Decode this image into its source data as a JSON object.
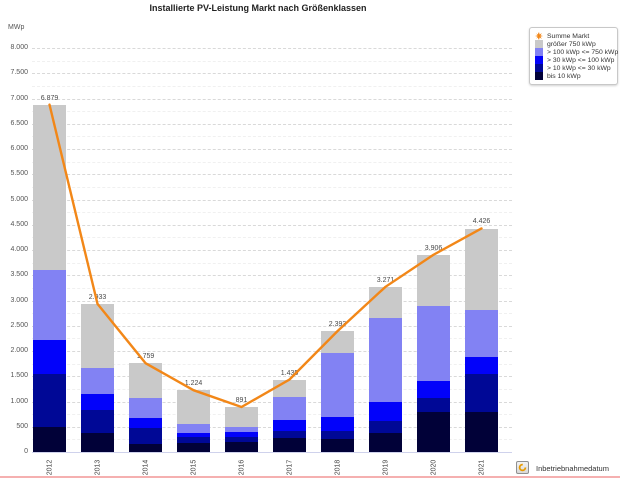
{
  "chart_data": {
    "type": "bar",
    "subtype": "stacked-bars-with-total-line",
    "title": "Installierte PV-Leistung Markt nach Größenklassen",
    "unit_label": "MWp",
    "xlabel": "Inbetriebnahmedatum",
    "ylabel": "MWp",
    "ylim": [
      0,
      8000
    ],
    "y_tick_step": 500,
    "y_minor_step": 250,
    "grid": "dashed",
    "legend_position": "top-right",
    "categories": [
      "2012",
      "2013",
      "2014",
      "2015",
      "2016",
      "2017",
      "2018",
      "2019",
      "2020",
      "2021"
    ],
    "stack_series": [
      {
        "name": "bis 10 kWp",
        "color": "#010138",
        "values": [
          500,
          380,
          160,
          170,
          205,
          280,
          250,
          380,
          790,
          785
        ]
      },
      {
        "name": "> 10 kWp <= 30 kWp",
        "color": "#000896",
        "values": [
          1050,
          460,
          320,
          125,
          95,
          140,
          175,
          235,
          280,
          750
        ]
      },
      {
        "name": "> 30 kWp <= 100 kWp",
        "color": "#0202fa",
        "values": [
          660,
          300,
          200,
          85,
          95,
          210,
          275,
          385,
          345,
          345
        ]
      },
      {
        "name": "> 100 kWp <= 750 kWp",
        "color": "#8282f3",
        "values": [
          1390,
          530,
          390,
          170,
          95,
          455,
          1255,
          1660,
          1480,
          935
        ]
      },
      {
        "name": "größer 750 kWp",
        "color": "#c9c9c9",
        "values": [
          3279,
          1263,
          689,
          674,
          401,
          350,
          438,
          611,
          1011,
          1611
        ]
      }
    ],
    "line_series": {
      "name": "Summe Markt",
      "color": "#f28718",
      "values": [
        6879,
        2933,
        1759,
        1224,
        891,
        1435,
        2393,
        3271,
        3906,
        4426
      ]
    },
    "total_labels": [
      "6.879",
      "2.933",
      "1.759",
      "1.224",
      "891",
      "1.435",
      "2.393",
      "3.271",
      "3.906",
      "4.426"
    ]
  },
  "legend": {
    "items": [
      {
        "label": "Summe Markt",
        "swatch": "line-marker",
        "color": "#f28718"
      },
      {
        "label": "größer 750 kWp",
        "swatch": "square",
        "color": "#c9c9c9"
      },
      {
        "label": "> 100 kWp <= 750 kWp",
        "swatch": "square",
        "color": "#8282f3"
      },
      {
        "label": "> 30 kWp <= 100 kWp",
        "swatch": "square",
        "color": "#0202fa"
      },
      {
        "label": "> 10 kWp <= 30 kWp",
        "swatch": "square",
        "color": "#000896"
      },
      {
        "label": "bis 10 kWp",
        "swatch": "square",
        "color": "#010138"
      }
    ]
  },
  "footer": {
    "dimension_label": "Inbetriebnahmedatum",
    "icon": "cyclic-group-icon"
  },
  "colors": {
    "accent_line": "#f28718",
    "divider": "#f5b0b0",
    "grid_major": "#d9d9d9",
    "grid_minor": "#f0f0f0"
  }
}
